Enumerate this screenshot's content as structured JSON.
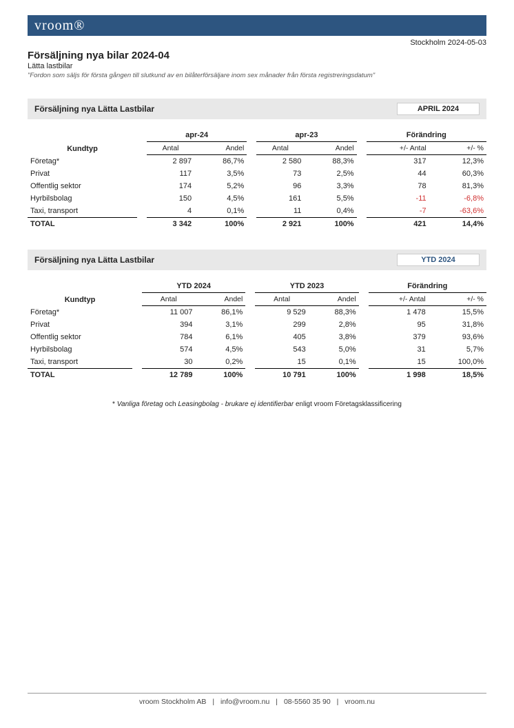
{
  "brand_logo_text": "vroom®",
  "location_date": "Stockholm 2024-05-03",
  "report_title": "Försäljning nya bilar 2024-04",
  "report_subtitle": "Lätta lastbilar",
  "report_definition": "\"Fordon som säljs för första gången till slutkund av en bilåterförsäljare inom sex månader från första registreringsdatum\"",
  "sections": [
    {
      "bar_title": "Försäljning nya Lätta Lastbilar",
      "badge": "APRIL 2024",
      "badge_class": "",
      "kundtyp_label": "Kundtyp",
      "group_headers": [
        "apr-24",
        "apr-23",
        "Förändring"
      ],
      "sub_headers": {
        "antal": "Antal",
        "andel": "Andel",
        "pm_antal": "+/- Antal",
        "pm_pct": "+/- %"
      },
      "rows": [
        {
          "label": "Företag*",
          "a1": "2 897",
          "s1": "86,7%",
          "a2": "2 580",
          "s2": "88,3%",
          "d": "317",
          "p": "12,3%",
          "neg": false
        },
        {
          "label": "Privat",
          "a1": "117",
          "s1": "3,5%",
          "a2": "73",
          "s2": "2,5%",
          "d": "44",
          "p": "60,3%",
          "neg": false
        },
        {
          "label": "Offentlig sektor",
          "a1": "174",
          "s1": "5,2%",
          "a2": "96",
          "s2": "3,3%",
          "d": "78",
          "p": "81,3%",
          "neg": false
        },
        {
          "label": "Hyrbilsbolag",
          "a1": "150",
          "s1": "4,5%",
          "a2": "161",
          "s2": "5,5%",
          "d": "-11",
          "p": "-6,8%",
          "neg": true
        },
        {
          "label": "Taxi, transport",
          "a1": "4",
          "s1": "0,1%",
          "a2": "11",
          "s2": "0,4%",
          "d": "-7",
          "p": "-63,6%",
          "neg": true
        }
      ],
      "total": {
        "label": "TOTAL",
        "a1": "3 342",
        "s1": "100%",
        "a2": "2 921",
        "s2": "100%",
        "d": "421",
        "p": "14,4%"
      }
    },
    {
      "bar_title": "Försäljning nya Lätta Lastbilar",
      "badge": "YTD 2024",
      "badge_class": "ytd",
      "kundtyp_label": "Kundtyp",
      "group_headers": [
        "YTD 2024",
        "YTD 2023",
        "Förändring"
      ],
      "sub_headers": {
        "antal": "Antal",
        "andel": "Andel",
        "pm_antal": "+/- Antal",
        "pm_pct": "+/- %"
      },
      "rows": [
        {
          "label": "Företag*",
          "a1": "11 007",
          "s1": "86,1%",
          "a2": "9 529",
          "s2": "88,3%",
          "d": "1 478",
          "p": "15,5%",
          "neg": false
        },
        {
          "label": "Privat",
          "a1": "394",
          "s1": "3,1%",
          "a2": "299",
          "s2": "2,8%",
          "d": "95",
          "p": "31,8%",
          "neg": false
        },
        {
          "label": "Offentlig sektor",
          "a1": "784",
          "s1": "6,1%",
          "a2": "405",
          "s2": "3,8%",
          "d": "379",
          "p": "93,6%",
          "neg": false
        },
        {
          "label": "Hyrbilsbolag",
          "a1": "574",
          "s1": "4,5%",
          "a2": "543",
          "s2": "5,0%",
          "d": "31",
          "p": "5,7%",
          "neg": false
        },
        {
          "label": "Taxi, transport",
          "a1": "30",
          "s1": "0,2%",
          "a2": "15",
          "s2": "0,1%",
          "d": "15",
          "p": "100,0%",
          "neg": false
        }
      ],
      "total": {
        "label": "TOTAL",
        "a1": "12 789",
        "s1": "100%",
        "a2": "10 791",
        "s2": "100%",
        "d": "1 998",
        "p": "18,5%"
      }
    }
  ],
  "footnote_parts": {
    "prefix": "* ",
    "em1": "Vanliga företag",
    "mid1": " och ",
    "em2": "Leasingbolag - brukare ej identifierbar",
    "suffix": " enligt vroom Företagsklassificering"
  },
  "footer": {
    "company": "vroom Stockholm AB",
    "email": "info@vroom.nu",
    "phone": "08-5560 35 90",
    "site": "vroom.nu",
    "sep": "|"
  }
}
